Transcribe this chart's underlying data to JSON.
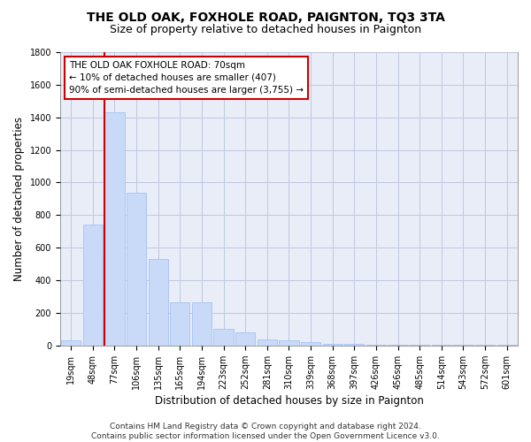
{
  "title": "THE OLD OAK, FOXHOLE ROAD, PAIGNTON, TQ3 3TA",
  "subtitle": "Size of property relative to detached houses in Paignton",
  "xlabel": "Distribution of detached houses by size in Paignton",
  "ylabel": "Number of detached properties",
  "categories": [
    "19sqm",
    "48sqm",
    "77sqm",
    "106sqm",
    "135sqm",
    "165sqm",
    "194sqm",
    "223sqm",
    "252sqm",
    "281sqm",
    "310sqm",
    "339sqm",
    "368sqm",
    "397sqm",
    "426sqm",
    "456sqm",
    "485sqm",
    "514sqm",
    "543sqm",
    "572sqm",
    "601sqm"
  ],
  "values": [
    30,
    740,
    1430,
    940,
    530,
    265,
    265,
    100,
    80,
    38,
    30,
    20,
    10,
    8,
    5,
    5,
    5,
    5,
    5,
    5,
    5
  ],
  "bar_color": "#c9daf8",
  "bar_edge_color": "#a4c2f4",
  "vline_index": 2,
  "vline_color": "#cc0000",
  "annotation_line1": "THE OLD OAK FOXHOLE ROAD: 70sqm",
  "annotation_line2": "← 10% of detached houses are smaller (407)",
  "annotation_line3": "90% of semi-detached houses are larger (3,755) →",
  "annotation_box_color": "#ffffff",
  "annotation_box_edge_color": "#cc0000",
  "ylim": [
    0,
    1800
  ],
  "yticks": [
    0,
    200,
    400,
    600,
    800,
    1000,
    1200,
    1400,
    1600,
    1800
  ],
  "footer_line1": "Contains HM Land Registry data © Crown copyright and database right 2024.",
  "footer_line2": "Contains public sector information licensed under the Open Government Licence v3.0.",
  "bg_color": "#ffffff",
  "plot_bg_color": "#e8edf8",
  "grid_color": "#c0c8e0",
  "title_fontsize": 10,
  "subtitle_fontsize": 9,
  "axis_label_fontsize": 8.5,
  "tick_fontsize": 7,
  "footer_fontsize": 6.5,
  "annotation_fontsize": 7.5
}
